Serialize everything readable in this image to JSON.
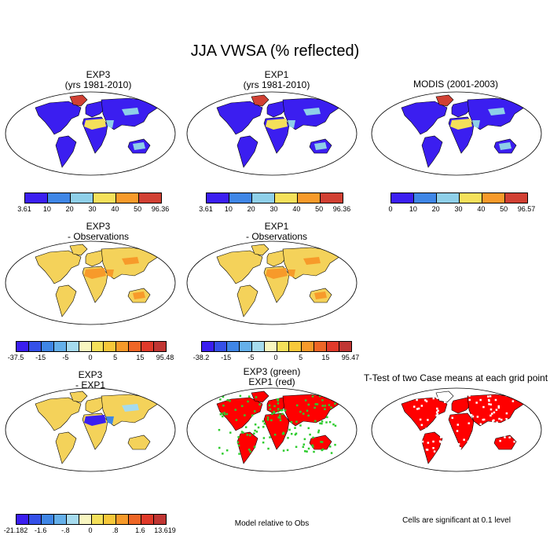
{
  "title": "JJA VWSA (% reflected)",
  "panels": {
    "exp3": {
      "line1": "EXP3",
      "line2": "(yrs 1981-2010)"
    },
    "exp1": {
      "line1": "EXP1",
      "line2": "(yrs 1981-2010)"
    },
    "modis": {
      "line1": "MODIS (2001-2003)"
    },
    "exp3_obs": {
      "line1": "EXP3",
      "line2": "- Observations"
    },
    "exp1_obs": {
      "line1": "EXP1",
      "line2": "- Observations"
    },
    "exp3_exp1": {
      "line1": "EXP3",
      "line2": "- EXP1"
    },
    "green_red": {
      "line1": "EXP3 (green)",
      "line2": "EXP1 (red)"
    },
    "ttest": {
      "line1": "T-Test of two Case means at each grid point"
    }
  },
  "notes": {
    "model_rel": "Model relative to Obs",
    "signif": "Cells are significant at 0.1 level"
  },
  "colorbars": {
    "exp3": {
      "labels": [
        "3.61",
        "10",
        "20",
        "30",
        "40",
        "50",
        "96.36"
      ],
      "colors": [
        "#3b1ef0",
        "#3f86e6",
        "#8ecfe8",
        "#f4e05a",
        "#f79a2a",
        "#d14033"
      ]
    },
    "exp1": {
      "labels": [
        "3.61",
        "10",
        "20",
        "30",
        "40",
        "50",
        "96.36"
      ],
      "colors": [
        "#3b1ef0",
        "#3f86e6",
        "#8ecfe8",
        "#f4e05a",
        "#f79a2a",
        "#d14033"
      ]
    },
    "modis": {
      "labels": [
        "0",
        "10",
        "20",
        "30",
        "40",
        "50",
        "96.57"
      ],
      "colors": [
        "#3b1ef0",
        "#3f86e6",
        "#8ecfe8",
        "#f4e05a",
        "#f79a2a",
        "#d14033"
      ]
    },
    "exp3_obs": {
      "labels": [
        "-37.5",
        "-15",
        "-5",
        "0",
        "5",
        "15",
        "95.48"
      ],
      "colors": [
        "#3b1ef0",
        "#3550e8",
        "#3f86e6",
        "#65b0ea",
        "#a6dbee",
        "#f8f6c0",
        "#f4e05a",
        "#f7c83a",
        "#f79a2a",
        "#ee6626",
        "#e03a2a",
        "#c03633"
      ]
    },
    "exp1_obs": {
      "labels": [
        "-38.2",
        "-15",
        "-5",
        "0",
        "5",
        "15",
        "95.47"
      ],
      "colors": [
        "#3b1ef0",
        "#3550e8",
        "#3f86e6",
        "#65b0ea",
        "#a6dbee",
        "#f8f6c0",
        "#f4e05a",
        "#f7c83a",
        "#f79a2a",
        "#ee6626",
        "#e03a2a",
        "#c03633"
      ]
    },
    "exp3_exp1": {
      "labels": [
        "-21.182",
        "-1.6",
        "-.8",
        "0",
        ".8",
        "1.6",
        "13.619"
      ],
      "colors": [
        "#3b1ef0",
        "#3550e8",
        "#3f86e6",
        "#65b0ea",
        "#a6dbee",
        "#f8f6c0",
        "#f4e05a",
        "#f7c83a",
        "#f79a2a",
        "#ee6626",
        "#e03a2a",
        "#c03633"
      ]
    }
  },
  "map_colors": {
    "outline": "#000000",
    "land_low": "#3b1ef0",
    "desert_mid": "#8ecfe8",
    "desert_high": "#f4e05a",
    "greenland": "#d14033",
    "diff_land": "#f4d25a",
    "diff_desert": "#f79a2a",
    "sig_red": "#ff0000",
    "sig_green": "#2ecc2e"
  }
}
